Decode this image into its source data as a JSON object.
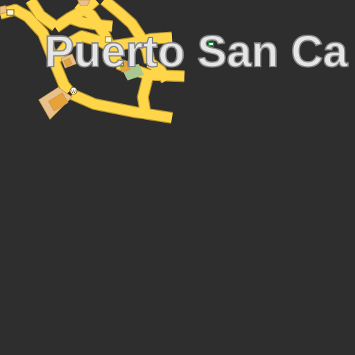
{
  "map": {
    "place_label": "Puerto San Ca",
    "colors": {
      "background": "#2e2e2e",
      "road": "#ffd54a",
      "road_casing": "#b8952a",
      "building_tan": "#e8c08a",
      "building_orange": "#e8a23a",
      "park_green": "#a8c890",
      "poi_green": "#1f8a3a",
      "poi_blue": "#2a5cc8"
    },
    "icons": [
      "restaurant-icon",
      "poi-icon",
      "bus-stop-icon",
      "parking-icon",
      "toilets-icon",
      "shop-icon"
    ]
  }
}
